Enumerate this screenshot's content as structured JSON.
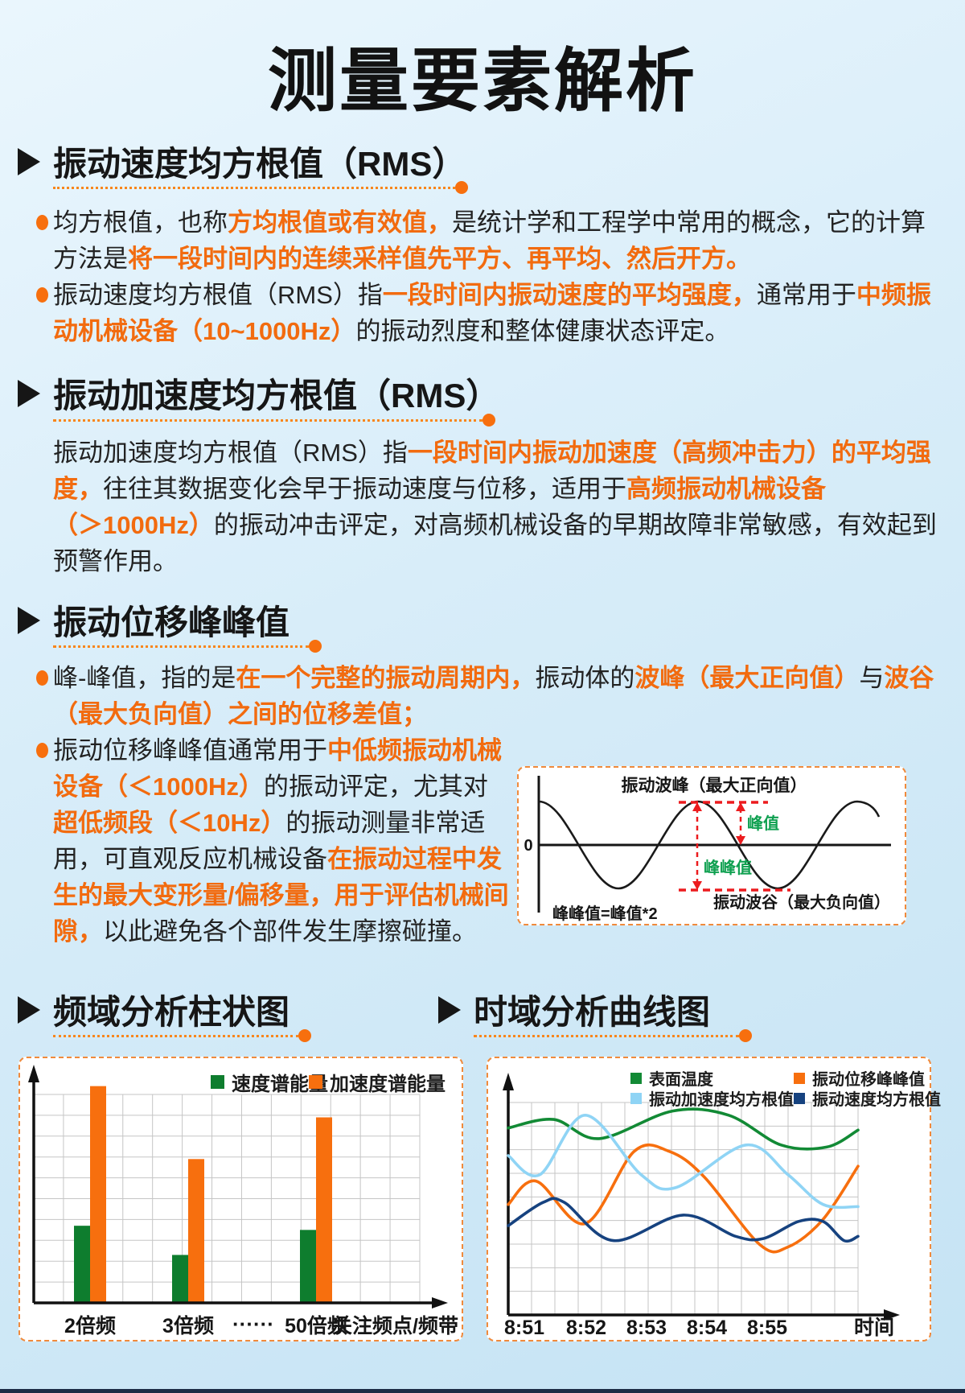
{
  "page": {
    "title": "测量要素解析"
  },
  "colors": {
    "accent_orange": "#F76F0E",
    "text_orange": "#F26B0F",
    "bar_green": "#0E7D2E",
    "curve_green": "#128A35",
    "curve_lightblue": "#8FD4F5",
    "curve_navy": "#16427F",
    "annotation_red": "#EC1B1E",
    "annotation_green": "#0FA050",
    "footer_navy": "#1C2C46"
  },
  "sections": [
    {
      "header": "振动速度均方根值（RMS）",
      "lines": [
        {
          "bullet": true,
          "segs": [
            {
              "t": "均方根值，也称"
            },
            {
              "t": "方均根值或有效值，",
              "o": true
            },
            {
              "t": "是统计学和工程学中常用的概念，它的计算"
            }
          ]
        },
        {
          "segs": [
            {
              "t": "方法是"
            },
            {
              "t": "将一段时间内的连续采样值先平方、再平均、然后开方。",
              "o": true
            }
          ]
        },
        {
          "bullet": true,
          "segs": [
            {
              "t": "振动速度均方根值（RMS）指"
            },
            {
              "t": "一段时间内振动速度的平均强度，",
              "o": true
            },
            {
              "t": "通常用于"
            },
            {
              "t": "中频振",
              "o": true
            }
          ]
        },
        {
          "segs": [
            {
              "t": "动机械设备（10~1000Hz）",
              "o": true
            },
            {
              "t": "的振动烈度和整体健康状态评定。"
            }
          ]
        }
      ]
    },
    {
      "header": "振动加速度均方根值（RMS）",
      "lines": [
        {
          "segs": [
            {
              "t": "振动加速度均方根值（RMS）指"
            },
            {
              "t": "一段时间内振动加速度（高频冲击力）的平均强",
              "o": true
            }
          ]
        },
        {
          "segs": [
            {
              "t": "度，",
              "o": true
            },
            {
              "t": "往往其数据变化会早于振动速度与位移，适用于"
            },
            {
              "t": "高频振动机械设备",
              "o": true
            }
          ]
        },
        {
          "segs": [
            {
              "t": "（＞1000Hz）",
              "o": true
            },
            {
              "t": "的振动冲击评定，对高频机械设备的早期故障非常敏感，有效起到"
            }
          ]
        },
        {
          "segs": [
            {
              "t": "预警作用。"
            }
          ]
        }
      ]
    },
    {
      "header": "振动位移峰峰值",
      "lines": [
        {
          "bullet": true,
          "segs": [
            {
              "t": "峰-峰值，指的是"
            },
            {
              "t": "在一个完整的振动周期内，",
              "o": true
            },
            {
              "t": "振动体的"
            },
            {
              "t": "波峰（最大正向值）",
              "o": true
            },
            {
              "t": "与"
            },
            {
              "t": "波谷",
              "o": true
            }
          ]
        },
        {
          "segs": [
            {
              "t": "（最大负向值）之间的位移差值；",
              "o": true
            }
          ]
        },
        {
          "bullet": true,
          "segs": [
            {
              "t": "振动位移峰峰值通常用于"
            },
            {
              "t": "中低频振动机械",
              "o": true
            }
          ]
        },
        {
          "segs": [
            {
              "t": "设备（＜1000Hz）",
              "o": true
            },
            {
              "t": "的振动评定，尤其对"
            }
          ]
        },
        {
          "segs": [
            {
              "t": "超低频段（＜10Hz）",
              "o": true
            },
            {
              "t": "的振动测量非常适"
            }
          ]
        },
        {
          "segs": [
            {
              "t": "用，可直观反应机械设备"
            },
            {
              "t": "在振动过程中发",
              "o": true
            }
          ]
        },
        {
          "segs": [
            {
              "t": "生的最大变形量/偏移量，用于评估机械间",
              "o": true
            }
          ]
        },
        {
          "segs": [
            {
              "t": "隙，",
              "o": true
            },
            {
              "t": "以此避免各个部件发生摩擦碰撞。"
            }
          ]
        }
      ]
    }
  ],
  "wave_diagram": {
    "peak_label": "振动波峰（最大正向值）",
    "zero_label": "0",
    "peak_value_label": "峰值",
    "peak_peak_label": "峰峰值",
    "trough_label": "振动波谷（最大负向值）",
    "formula_label": "峰峰值=峰值*2"
  },
  "bottom_sections": [
    {
      "header": "频域分析柱状图"
    },
    {
      "header": "时域分析曲线图"
    }
  ],
  "chart_data": [
    {
      "type": "bar",
      "title": "频域分析柱状图",
      "categories": [
        "2倍频",
        "3倍频",
        "50倍频"
      ],
      "gap_label": "······",
      "x_axis_label": "关注频点/频带",
      "ylim": [
        0,
        10
      ],
      "grid": true,
      "legend_position": "top-right",
      "series": [
        {
          "name": "速度谱能量",
          "color": "#0E7D2E",
          "values": [
            3.7,
            2.3,
            3.5
          ]
        },
        {
          "name": "加速度谱能量",
          "color": "#F76F0E",
          "values": [
            10.4,
            6.9,
            8.9
          ]
        }
      ]
    },
    {
      "type": "line",
      "title": "时域分析曲线图",
      "x_ticks": [
        "8:51",
        "8:52",
        "8:53",
        "8:54",
        "8:55"
      ],
      "x_axis_label": "时间",
      "ylim": [
        0,
        10
      ],
      "grid": true,
      "legend_position": "top",
      "series": [
        {
          "name": "表面温度",
          "color": "#128A35",
          "points": [
            [
              0,
              8.8
            ],
            [
              0.13,
              9.2
            ],
            [
              0.26,
              8.3
            ],
            [
              0.47,
              9.6
            ],
            [
              0.63,
              9.4
            ],
            [
              0.78,
              8.0
            ],
            [
              0.91,
              7.9
            ],
            [
              1,
              8.7
            ]
          ]
        },
        {
          "name": "振动位移峰峰值",
          "color": "#F76F0E",
          "points": [
            [
              0,
              5.2
            ],
            [
              0.08,
              6.3
            ],
            [
              0.22,
              4.3
            ],
            [
              0.36,
              7.7
            ],
            [
              0.46,
              7.7
            ],
            [
              0.56,
              6.5
            ],
            [
              0.72,
              3.3
            ],
            [
              0.8,
              3.2
            ],
            [
              0.9,
              4.5
            ],
            [
              1,
              7.0
            ]
          ]
        },
        {
          "name": "振动加速度均方根值",
          "color": "#8FD4F5",
          "points": [
            [
              0,
              7.5
            ],
            [
              0.09,
              6.6
            ],
            [
              0.22,
              9.4
            ],
            [
              0.38,
              6.6
            ],
            [
              0.48,
              6.0
            ],
            [
              0.68,
              8.0
            ],
            [
              0.8,
              6.6
            ],
            [
              0.9,
              5.2
            ],
            [
              1,
              5.1
            ]
          ]
        },
        {
          "name": "振动速度均方根值",
          "color": "#16427F",
          "points": [
            [
              0,
              4.2
            ],
            [
              0.1,
              5.3
            ],
            [
              0.16,
              5.3
            ],
            [
              0.3,
              3.5
            ],
            [
              0.5,
              4.7
            ],
            [
              0.65,
              3.7
            ],
            [
              0.73,
              3.6
            ],
            [
              0.83,
              4.4
            ],
            [
              0.9,
              4.4
            ],
            [
              0.96,
              3.5
            ],
            [
              1,
              3.7
            ]
          ]
        }
      ]
    }
  ]
}
